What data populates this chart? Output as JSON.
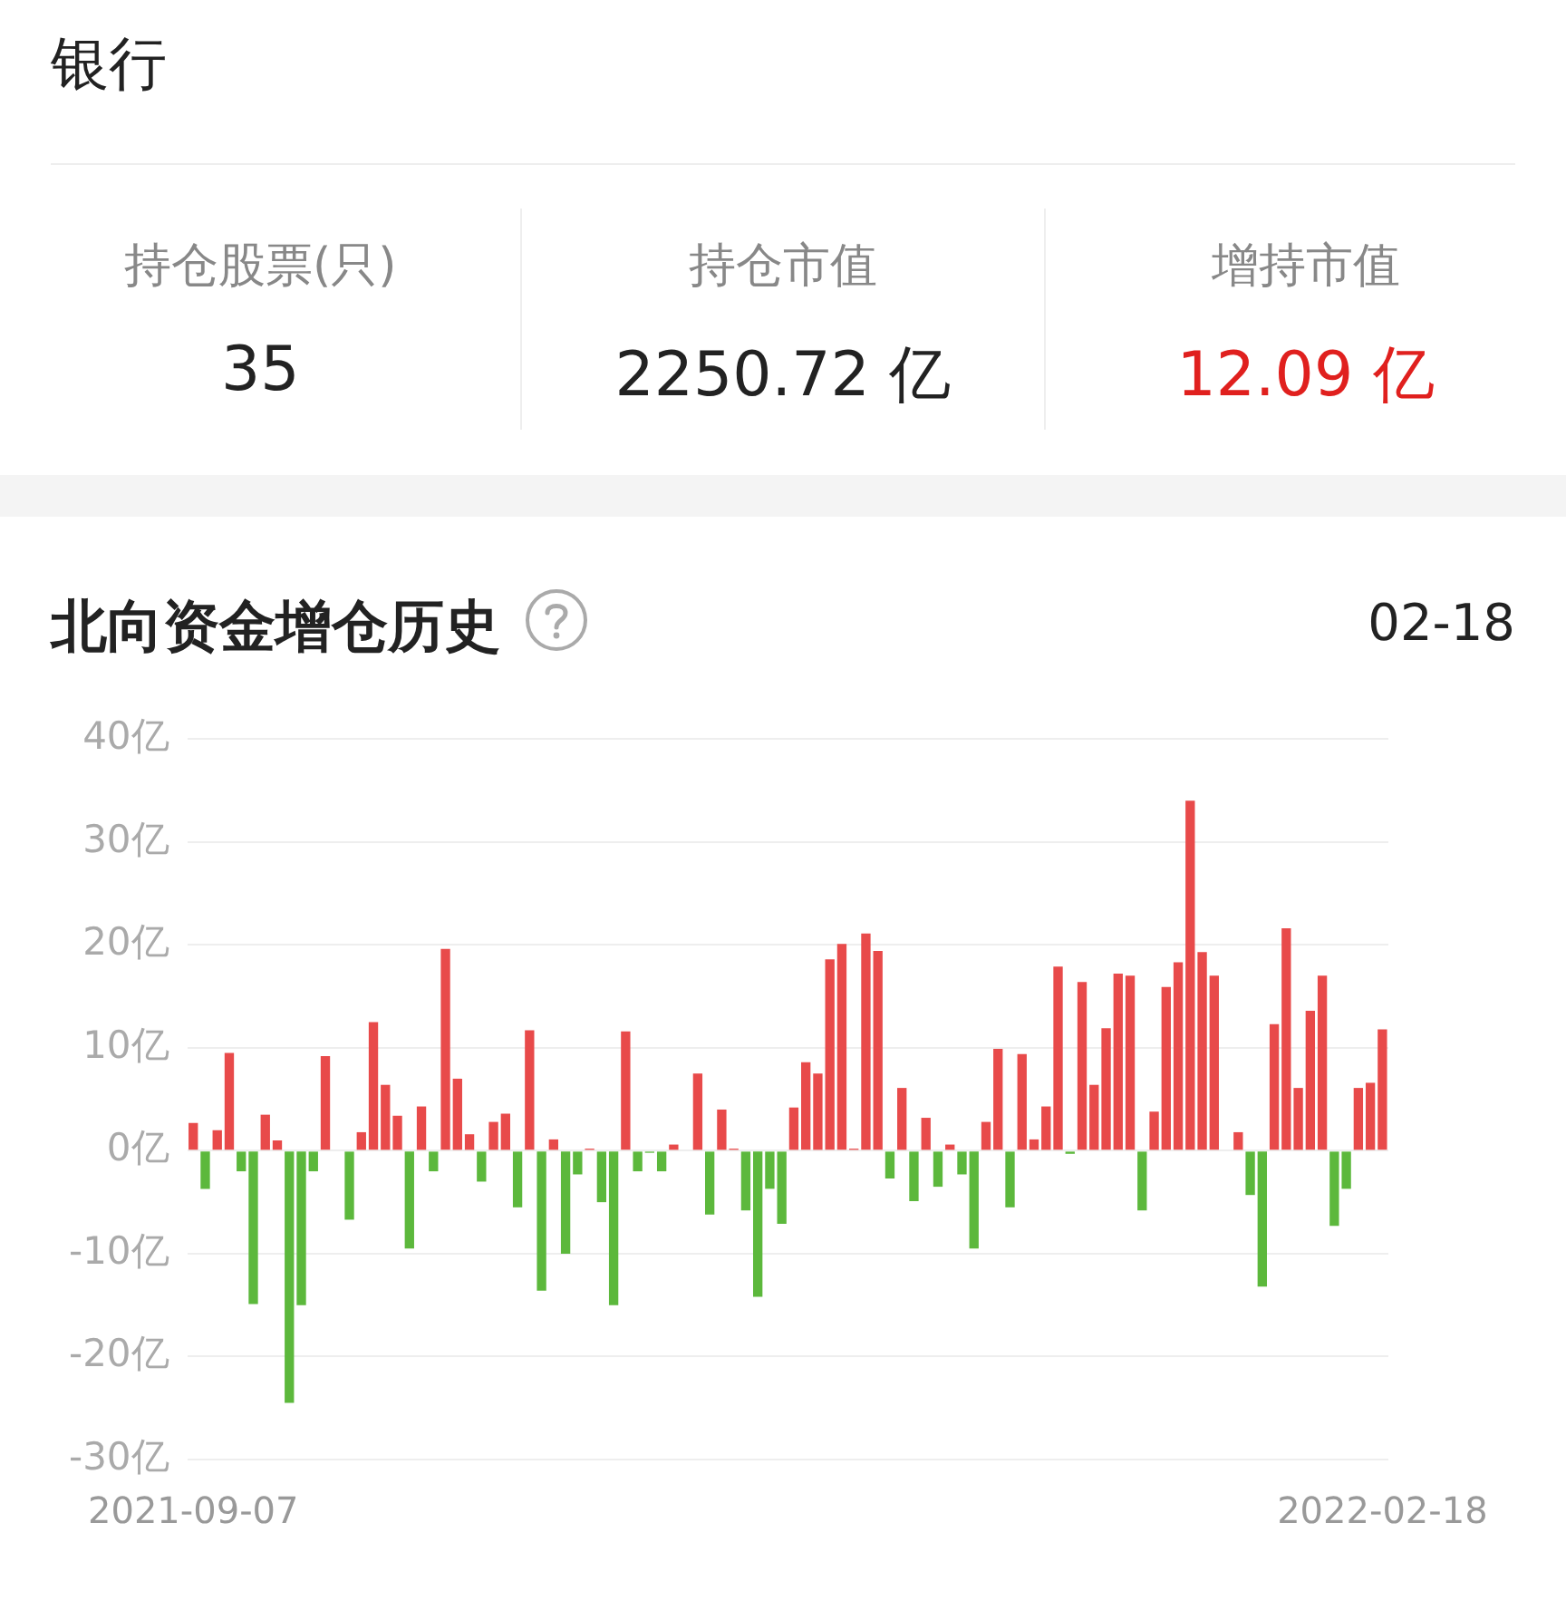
{
  "chart_data": [
    {
      "type": "other",
      "title": "银行",
      "annotations": [
        "持仓股票(只)",
        "35",
        "持仓市值",
        "2250.72 亿",
        "增持市值",
        "12.09 亿"
      ]
    },
    {
      "type": "bar",
      "title": "北向资金增仓历史",
      "annotations": [
        "02-18"
      ],
      "grid": "y",
      "legend": false,
      "categories": [
        "2021-09-07",
        null,
        null,
        null,
        null,
        null,
        null,
        null,
        null,
        null,
        null,
        null,
        null,
        null,
        null,
        null,
        null,
        null,
        null,
        null,
        null,
        null,
        null,
        null,
        null,
        null,
        null,
        null,
        null,
        null,
        null,
        null,
        null,
        null,
        null,
        null,
        null,
        null,
        null,
        null,
        null,
        null,
        null,
        null,
        null,
        null,
        null,
        null,
        null,
        null,
        null,
        null,
        null,
        null,
        null,
        null,
        null,
        null,
        null,
        null,
        null,
        null,
        null,
        null,
        null,
        null,
        null,
        null,
        null,
        null,
        null,
        null,
        null,
        null,
        null,
        null,
        null,
        null,
        null,
        null,
        null,
        null,
        null,
        null,
        null,
        null,
        null,
        null,
        null,
        null,
        null,
        null,
        null,
        null,
        null,
        null,
        null,
        null,
        null,
        "2022-02-18"
      ],
      "values": [
        2.7,
        -3.7,
        2,
        9.5,
        -2,
        -14.9,
        3.5,
        1,
        -24.5,
        -15,
        -2,
        9.2,
        null,
        -6.7,
        1.8,
        12.5,
        6.4,
        3.4,
        -9.5,
        4.3,
        -2,
        19.6,
        7,
        1.6,
        -3,
        2.8,
        3.6,
        -5.5,
        11.7,
        -13.6,
        1.1,
        -10,
        -2.3,
        0.2,
        -5,
        -15,
        11.6,
        -2,
        -0.2,
        -2,
        0.6,
        0,
        7.5,
        -6.2,
        4,
        0.2,
        -5.8,
        -14.2,
        -3.7,
        -7.1,
        4.2,
        8.6,
        7.5,
        18.6,
        20.1,
        0.2,
        21.1,
        19.4,
        -2.7,
        6.1,
        -4.9,
        3.2,
        -3.5,
        0.6,
        -2.3,
        -9.5,
        2.8,
        9.9,
        -5.5,
        9.4,
        1.1,
        4.3,
        17.9,
        -0.3,
        16.4,
        6.4,
        11.9,
        17.2,
        17,
        -5.8,
        3.8,
        15.9,
        18.3,
        34,
        19.3,
        17,
        null,
        1.8,
        -4.3,
        -13.2,
        12.3,
        21.6,
        6.1,
        13.6,
        17,
        -7.3,
        -3.7,
        6.1,
        6.6,
        11.8
      ],
      "colors": [
        "#e84a4a",
        "#5cb83c",
        "#e84a4a",
        "#e84a4a",
        "#5cb83c",
        "#5cb83c",
        "#e84a4a",
        "#e84a4a",
        "#5cb83c",
        "#5cb83c",
        "#5cb83c",
        "#e84a4a",
        "#5cb83c",
        "#5cb83c",
        "#e84a4a",
        "#e84a4a",
        "#e84a4a",
        "#e84a4a",
        "#5cb83c",
        "#e84a4a",
        "#5cb83c",
        "#e84a4a",
        "#e84a4a",
        "#e84a4a",
        "#5cb83c",
        "#e84a4a",
        "#e84a4a",
        "#5cb83c",
        "#e84a4a",
        "#5cb83c",
        "#e84a4a",
        "#5cb83c",
        "#5cb83c",
        "#e84a4a",
        "#5cb83c",
        "#5cb83c",
        "#e84a4a",
        "#5cb83c",
        "#5cb83c",
        "#5cb83c",
        "#e84a4a",
        "#e84a4a",
        "#e84a4a",
        "#5cb83c",
        "#e84a4a",
        "#e84a4a",
        "#5cb83c",
        "#5cb83c",
        "#5cb83c",
        "#5cb83c",
        "#e84a4a",
        "#e84a4a",
        "#e84a4a",
        "#e84a4a",
        "#e84a4a",
        "#e84a4a",
        "#e84a4a",
        "#e84a4a",
        "#5cb83c",
        "#e84a4a",
        "#5cb83c",
        "#e84a4a",
        "#5cb83c",
        "#e84a4a",
        "#5cb83c",
        "#5cb83c",
        "#e84a4a",
        "#e84a4a",
        "#5cb83c",
        "#e84a4a",
        "#e84a4a",
        "#e84a4a",
        "#e84a4a",
        "#5cb83c",
        "#e84a4a",
        "#e84a4a",
        "#e84a4a",
        "#e84a4a",
        "#e84a4a",
        "#5cb83c",
        "#e84a4a",
        "#e84a4a",
        "#e84a4a",
        "#e84a4a",
        "#e84a4a",
        "#e84a4a",
        "#e84a4a",
        "#e84a4a",
        "#5cb83c",
        "#5cb83c",
        "#e84a4a",
        "#e84a4a",
        "#e84a4a",
        "#e84a4a",
        "#e84a4a",
        "#5cb83c",
        "#5cb83c",
        "#e84a4a",
        "#e84a4a",
        "#e84a4a"
      ],
      "ylim": [
        -30,
        40
      ],
      "yticks": [
        {
          "value": 40,
          "label": "40亿"
        },
        {
          "value": 30,
          "label": "30亿"
        },
        {
          "value": 20,
          "label": "20亿"
        },
        {
          "value": 10,
          "label": "10亿"
        },
        {
          "value": 0,
          "label": "0亿"
        },
        {
          "value": -10,
          "label": "-10亿"
        },
        {
          "value": -20,
          "label": "-20亿"
        },
        {
          "value": -30,
          "label": "-30亿"
        }
      ]
    }
  ]
}
